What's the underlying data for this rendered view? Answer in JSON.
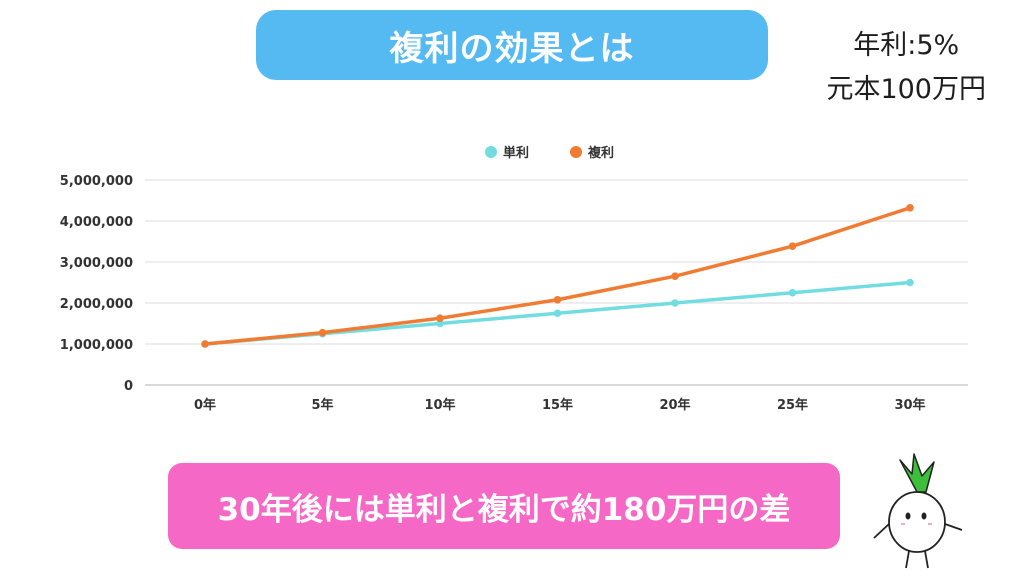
{
  "title": "複利の効果とは",
  "note": {
    "rate": "年利:5%",
    "principal": "元本100万円"
  },
  "summary": "30年後には単利と複利で約180万円の差",
  "colors": {
    "title_bg": "#55baf2",
    "summary_bg": "#f568c5",
    "simple": "#72dde1",
    "compound": "#f07c34"
  },
  "chart_data": {
    "type": "line",
    "title": "",
    "xlabel": "",
    "ylabel": "",
    "categories": [
      "0年",
      "5年",
      "10年",
      "15年",
      "20年",
      "25年",
      "30年"
    ],
    "y_ticks": [
      0,
      1000000,
      2000000,
      3000000,
      4000000,
      5000000
    ],
    "y_tick_labels": [
      "0",
      "1,000,000",
      "2,000,000",
      "3,000,000",
      "4,000,000",
      "5,000,000"
    ],
    "ylim": [
      0,
      5000000
    ],
    "grid": true,
    "legend_position": "top-center",
    "series": [
      {
        "name": "単利",
        "color": "#72dde1",
        "values": [
          1000000,
          1250000,
          1500000,
          1750000,
          2000000,
          2250000,
          2500000
        ]
      },
      {
        "name": "複利",
        "color": "#f07c34",
        "values": [
          1000000,
          1276282,
          1628895,
          2078928,
          2653298,
          3386355,
          4321942
        ]
      }
    ]
  }
}
